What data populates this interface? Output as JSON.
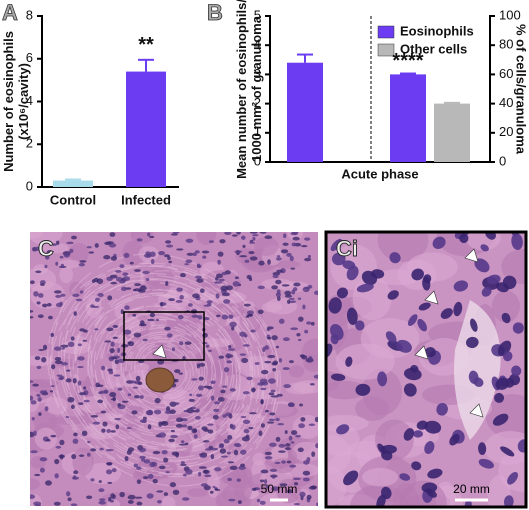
{
  "chart_data": [
    {
      "type": "bar",
      "panel_label": "A",
      "ylabel": [
        "Number of eosinophils",
        "(x10⁶/cavity)"
      ],
      "categories": [
        "Control",
        "Infected"
      ],
      "values": [
        0.3,
        5.4
      ],
      "errors": [
        0.05,
        0.55
      ],
      "colors": [
        "#a8dcea",
        "#6b3cf2"
      ],
      "ylim": [
        0,
        8
      ],
      "yticks": [
        0,
        2,
        4,
        6,
        8
      ],
      "annotation": "**"
    },
    {
      "type": "bar",
      "panel_label": "B",
      "ylabel": [
        "Mean number of eosinophils/",
        "1000 mm² of granuloma"
      ],
      "y2label": "% of cells/granuloma",
      "xlabel": "Acute phase",
      "categories": [
        null,
        null
      ],
      "series": [
        {
          "name": "Eosinophils",
          "color": "#6b3cf2",
          "values": [
            3.4,
            3.0
          ],
          "errors": [
            0.28,
            0.03
          ]
        },
        {
          "name": "Other cells",
          "color": "#b8b8b8",
          "axis": "y2",
          "values": [
            null,
            40
          ],
          "errors": [
            null,
            0.5
          ]
        }
      ],
      "ylim": [
        0,
        5
      ],
      "yticks": [
        0,
        1,
        2,
        3,
        4,
        5
      ],
      "y2lim": [
        0,
        100
      ],
      "y2ticks": [
        0,
        20,
        40,
        60,
        80,
        100
      ],
      "legend": "upper right",
      "annotation": "****"
    }
  ],
  "images": [
    {
      "panel_label": "C",
      "scale_bar": "50 mm"
    },
    {
      "panel_label": "Ci",
      "scale_bar": "20 mm"
    }
  ]
}
